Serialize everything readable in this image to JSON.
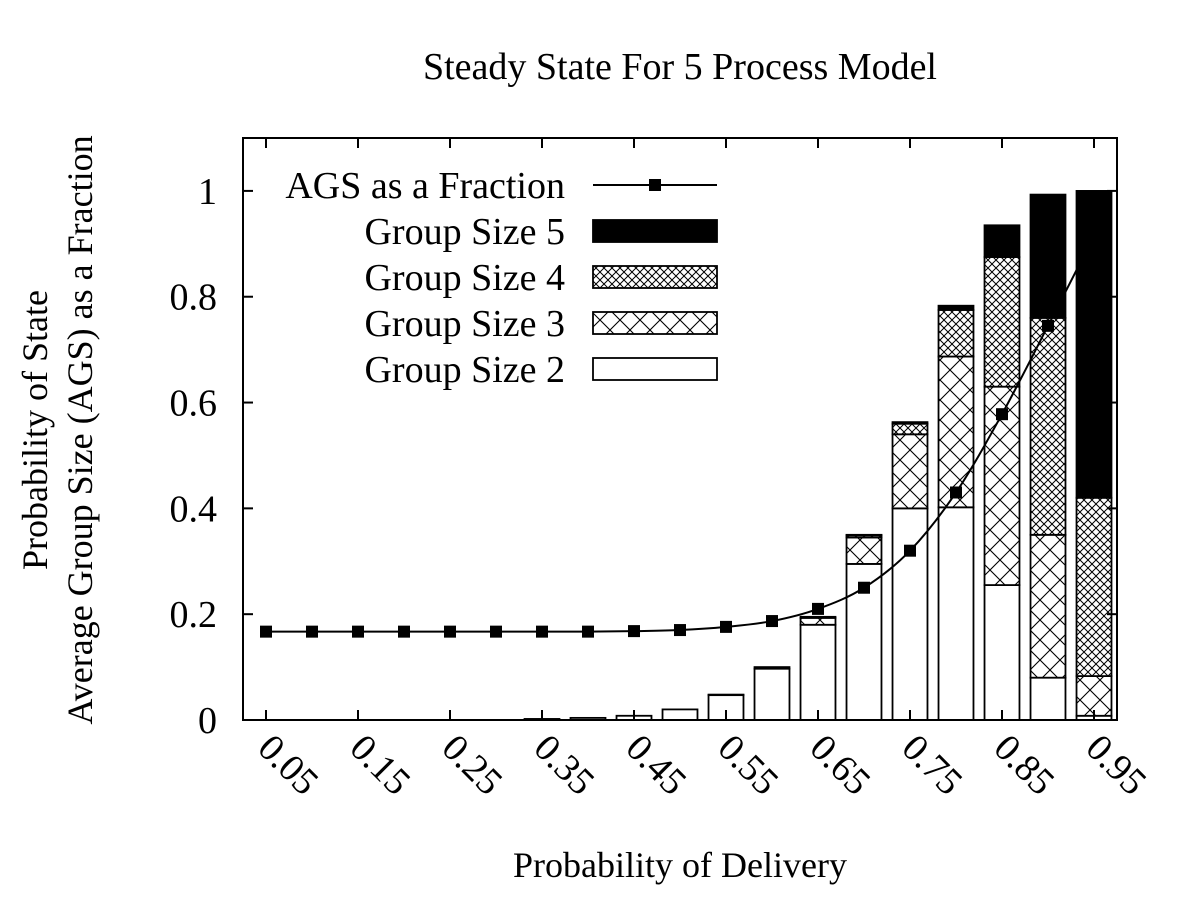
{
  "chart_data": {
    "type": "bar",
    "stacked": true,
    "title": "Steady State For 5 Process Model",
    "xlabel": "Probability of Delivery",
    "ylabel": [
      "Probability of State",
      "Average Group Size (AGS) as a Fraction"
    ],
    "ylim": [
      0,
      1.1
    ],
    "yticks": [
      "0",
      "0.2",
      "0.4",
      "0.6",
      "0.8",
      "1"
    ],
    "xtick_labels": [
      "0.05",
      "0.15",
      "0.25",
      "0.35",
      "0.45",
      "0.55",
      "0.65",
      "0.75",
      "0.85",
      "0.95"
    ],
    "x": [
      0.05,
      0.1,
      0.15,
      0.2,
      0.25,
      0.3,
      0.35,
      0.4,
      0.45,
      0.5,
      0.55,
      0.6,
      0.65,
      0.7,
      0.75,
      0.8,
      0.85,
      0.9,
      0.95
    ],
    "series": [
      {
        "name": "Group Size 2",
        "pattern": "white",
        "values": [
          0,
          0,
          0,
          0,
          0,
          0,
          0.002,
          0.004,
          0.008,
          0.02,
          0.047,
          0.097,
          0.18,
          0.295,
          0.4,
          0.402,
          0.255,
          0.08,
          0.008
        ]
      },
      {
        "name": "Group Size 3",
        "pattern": "cross",
        "values": [
          0,
          0,
          0,
          0,
          0,
          0,
          0,
          0,
          0,
          0,
          0.001,
          0.003,
          0.013,
          0.05,
          0.14,
          0.285,
          0.375,
          0.27,
          0.075
        ]
      },
      {
        "name": "Group Size 4",
        "pattern": "crosshatch",
        "values": [
          0,
          0,
          0,
          0,
          0,
          0,
          0,
          0,
          0,
          0,
          0,
          0,
          0.002,
          0.004,
          0.02,
          0.088,
          0.245,
          0.41,
          0.337
        ]
      },
      {
        "name": "Group Size 5",
        "pattern": "solid",
        "values": [
          0,
          0,
          0,
          0,
          0,
          0,
          0,
          0,
          0,
          0,
          0,
          0,
          0,
          0.001,
          0.003,
          0.008,
          0.06,
          0.233,
          0.58
        ]
      }
    ],
    "line": {
      "name": "AGS as a Fraction",
      "values": [
        0.167,
        0.167,
        0.167,
        0.167,
        0.167,
        0.167,
        0.167,
        0.167,
        0.168,
        0.17,
        0.176,
        0.187,
        0.21,
        0.25,
        0.32,
        0.43,
        0.578,
        0.745,
        0.915
      ]
    },
    "legend": {
      "position": "top-left",
      "order": [
        "AGS as a Fraction",
        "Group Size 5",
        "Group Size 4",
        "Group Size 3",
        "Group Size 2"
      ]
    },
    "grid": false
  }
}
